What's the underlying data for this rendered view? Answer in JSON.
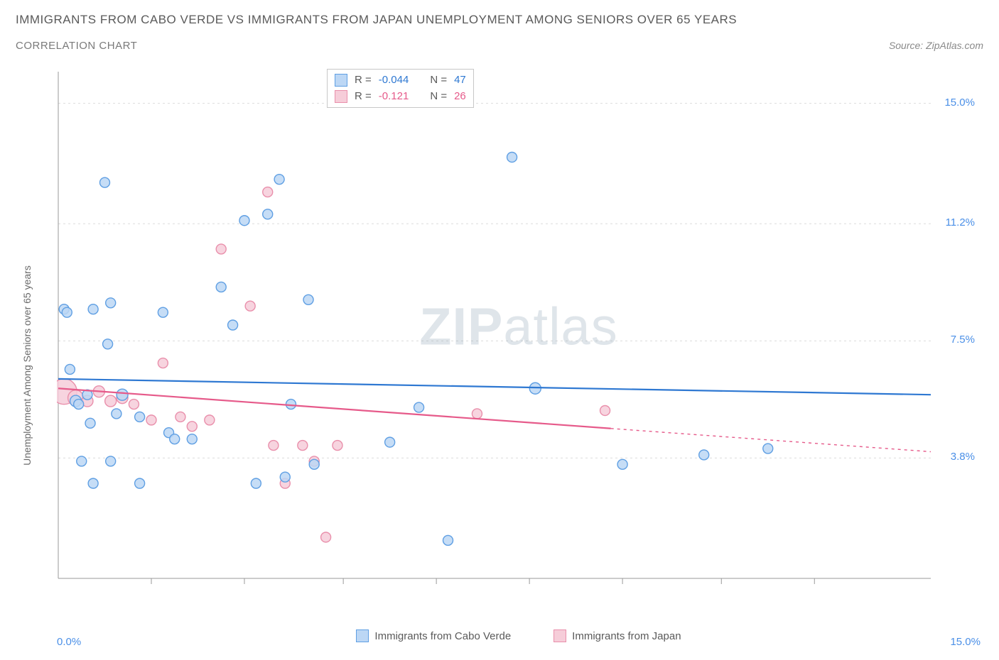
{
  "title": "IMMIGRANTS FROM CABO VERDE VS IMMIGRANTS FROM JAPAN UNEMPLOYMENT AMONG SENIORS OVER 65 YEARS",
  "subtitle": "CORRELATION CHART",
  "source_label": "Source: ZipAtlas.com",
  "yaxis_label": "Unemployment Among Seniors over 65 years",
  "watermark": {
    "bold": "ZIP",
    "rest": "atlas"
  },
  "chart": {
    "type": "scatter",
    "xlim": [
      0,
      15
    ],
    "ylim": [
      0,
      16
    ],
    "x_min_label": "0.0%",
    "x_max_label": "15.0%",
    "y_tick_values": [
      3.8,
      7.5,
      11.2,
      15.0
    ],
    "y_tick_labels": [
      "3.8%",
      "7.5%",
      "11.2%",
      "15.0%"
    ],
    "x_tick_positions": [
      1.6,
      3.2,
      4.9,
      6.5,
      8.1,
      9.7,
      11.4,
      13.0
    ],
    "grid_color": "#dcdcdc",
    "axis_color": "#9a9a9a",
    "background_color": "#ffffff",
    "series": [
      {
        "name": "Immigrants from Cabo Verde",
        "fill": "#bcd7f5",
        "stroke": "#5f9fe3",
        "line_color": "#2e78d2",
        "r_value": "-0.044",
        "n_value": "47",
        "trend": {
          "x1": 0,
          "y1": 6.3,
          "x2": 15,
          "y2": 5.8,
          "dash_from": null
        },
        "points": [
          {
            "x": 0.1,
            "y": 8.5,
            "r": 7
          },
          {
            "x": 0.15,
            "y": 8.4,
            "r": 7
          },
          {
            "x": 0.2,
            "y": 6.6,
            "r": 7
          },
          {
            "x": 0.3,
            "y": 5.6,
            "r": 8
          },
          {
            "x": 0.35,
            "y": 5.5,
            "r": 7
          },
          {
            "x": 0.4,
            "y": 3.7,
            "r": 7
          },
          {
            "x": 0.5,
            "y": 5.8,
            "r": 7
          },
          {
            "x": 0.55,
            "y": 4.9,
            "r": 7
          },
          {
            "x": 0.6,
            "y": 8.5,
            "r": 7
          },
          {
            "x": 0.6,
            "y": 3.0,
            "r": 7
          },
          {
            "x": 0.8,
            "y": 12.5,
            "r": 7
          },
          {
            "x": 0.85,
            "y": 7.4,
            "r": 7
          },
          {
            "x": 0.9,
            "y": 8.7,
            "r": 7
          },
          {
            "x": 0.9,
            "y": 3.7,
            "r": 7
          },
          {
            "x": 1.0,
            "y": 5.2,
            "r": 7
          },
          {
            "x": 1.1,
            "y": 5.8,
            "r": 8
          },
          {
            "x": 1.4,
            "y": 5.1,
            "r": 7
          },
          {
            "x": 1.4,
            "y": 3.0,
            "r": 7
          },
          {
            "x": 1.8,
            "y": 8.4,
            "r": 7
          },
          {
            "x": 1.9,
            "y": 4.6,
            "r": 7
          },
          {
            "x": 2.0,
            "y": 4.4,
            "r": 7
          },
          {
            "x": 2.3,
            "y": 4.4,
            "r": 7
          },
          {
            "x": 2.8,
            "y": 9.2,
            "r": 7
          },
          {
            "x": 3.0,
            "y": 8.0,
            "r": 7
          },
          {
            "x": 3.2,
            "y": 11.3,
            "r": 7
          },
          {
            "x": 3.4,
            "y": 3.0,
            "r": 7
          },
          {
            "x": 3.6,
            "y": 11.5,
            "r": 7
          },
          {
            "x": 3.8,
            "y": 12.6,
            "r": 7
          },
          {
            "x": 3.9,
            "y": 3.2,
            "r": 7
          },
          {
            "x": 4.0,
            "y": 5.5,
            "r": 7
          },
          {
            "x": 4.3,
            "y": 8.8,
            "r": 7
          },
          {
            "x": 4.4,
            "y": 3.6,
            "r": 7
          },
          {
            "x": 5.7,
            "y": 4.3,
            "r": 7
          },
          {
            "x": 6.2,
            "y": 5.4,
            "r": 7
          },
          {
            "x": 6.7,
            "y": 1.2,
            "r": 7
          },
          {
            "x": 7.8,
            "y": 13.3,
            "r": 7
          },
          {
            "x": 8.2,
            "y": 6.0,
            "r": 8
          },
          {
            "x": 9.7,
            "y": 3.6,
            "r": 7
          },
          {
            "x": 11.1,
            "y": 3.9,
            "r": 7
          },
          {
            "x": 12.2,
            "y": 4.1,
            "r": 7
          }
        ]
      },
      {
        "name": "Immigrants from Japan",
        "fill": "#f6cdd9",
        "stroke": "#e98fab",
        "line_color": "#e65a8a",
        "r_value": "-0.121",
        "n_value": "26",
        "trend": {
          "x1": 0,
          "y1": 6.0,
          "x2": 15,
          "y2": 4.0,
          "dash_from": 9.5
        },
        "points": [
          {
            "x": 0.1,
            "y": 5.9,
            "r": 18
          },
          {
            "x": 0.3,
            "y": 5.7,
            "r": 11
          },
          {
            "x": 0.5,
            "y": 5.6,
            "r": 8
          },
          {
            "x": 0.7,
            "y": 5.9,
            "r": 8
          },
          {
            "x": 0.9,
            "y": 5.6,
            "r": 8
          },
          {
            "x": 1.1,
            "y": 5.7,
            "r": 8
          },
          {
            "x": 1.3,
            "y": 5.5,
            "r": 7
          },
          {
            "x": 1.6,
            "y": 5.0,
            "r": 7
          },
          {
            "x": 1.8,
            "y": 6.8,
            "r": 7
          },
          {
            "x": 2.1,
            "y": 5.1,
            "r": 7
          },
          {
            "x": 2.3,
            "y": 4.8,
            "r": 7
          },
          {
            "x": 2.6,
            "y": 5.0,
            "r": 7
          },
          {
            "x": 2.8,
            "y": 10.4,
            "r": 7
          },
          {
            "x": 3.3,
            "y": 8.6,
            "r": 7
          },
          {
            "x": 3.6,
            "y": 12.2,
            "r": 7
          },
          {
            "x": 3.7,
            "y": 4.2,
            "r": 7
          },
          {
            "x": 3.9,
            "y": 3.0,
            "r": 7
          },
          {
            "x": 4.2,
            "y": 4.2,
            "r": 7
          },
          {
            "x": 4.4,
            "y": 3.7,
            "r": 7
          },
          {
            "x": 4.6,
            "y": 1.3,
            "r": 7
          },
          {
            "x": 4.8,
            "y": 4.2,
            "r": 7
          },
          {
            "x": 7.2,
            "y": 5.2,
            "r": 7
          },
          {
            "x": 9.4,
            "y": 5.3,
            "r": 7
          }
        ]
      }
    ]
  },
  "corr_legend": {
    "r_label": "R =",
    "n_label": "N ="
  },
  "bottom_legend": {
    "s1": "Immigrants from Cabo Verde",
    "s2": "Immigrants from Japan"
  }
}
